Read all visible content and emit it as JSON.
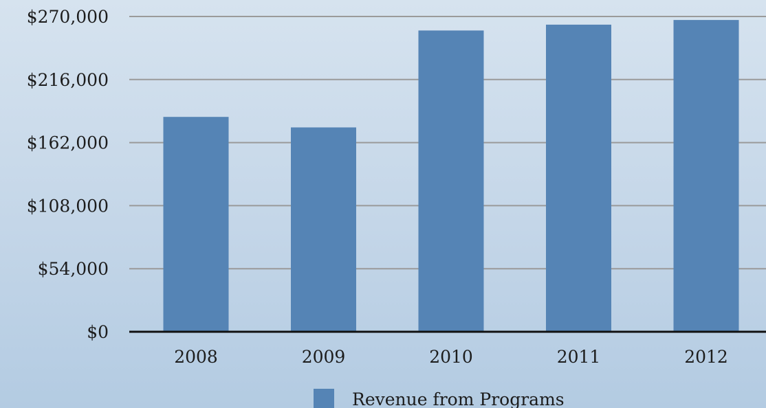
{
  "chart_data": {
    "type": "bar",
    "title": "",
    "xlabel": "",
    "ylabel": "",
    "categories": [
      "2008",
      "2009",
      "2010",
      "2011",
      "2012"
    ],
    "series": [
      {
        "name": "Revenue from Programs",
        "values": [
          184000,
          175000,
          258000,
          263000,
          267000
        ],
        "color": "#5584b5"
      }
    ],
    "ylim": [
      0,
      270000
    ],
    "yticks": [
      0,
      54000,
      108000,
      162000,
      216000,
      270000
    ],
    "ytick_labels": [
      "$0",
      "$54,000",
      "$108,000",
      "$162,000",
      "$216,000",
      "$270,000"
    ],
    "grid": true,
    "legend_position": "bottom-center",
    "colors": {
      "gridline": "#9a9a9a",
      "axis": "#111111",
      "text": "#1c1c1c"
    }
  }
}
